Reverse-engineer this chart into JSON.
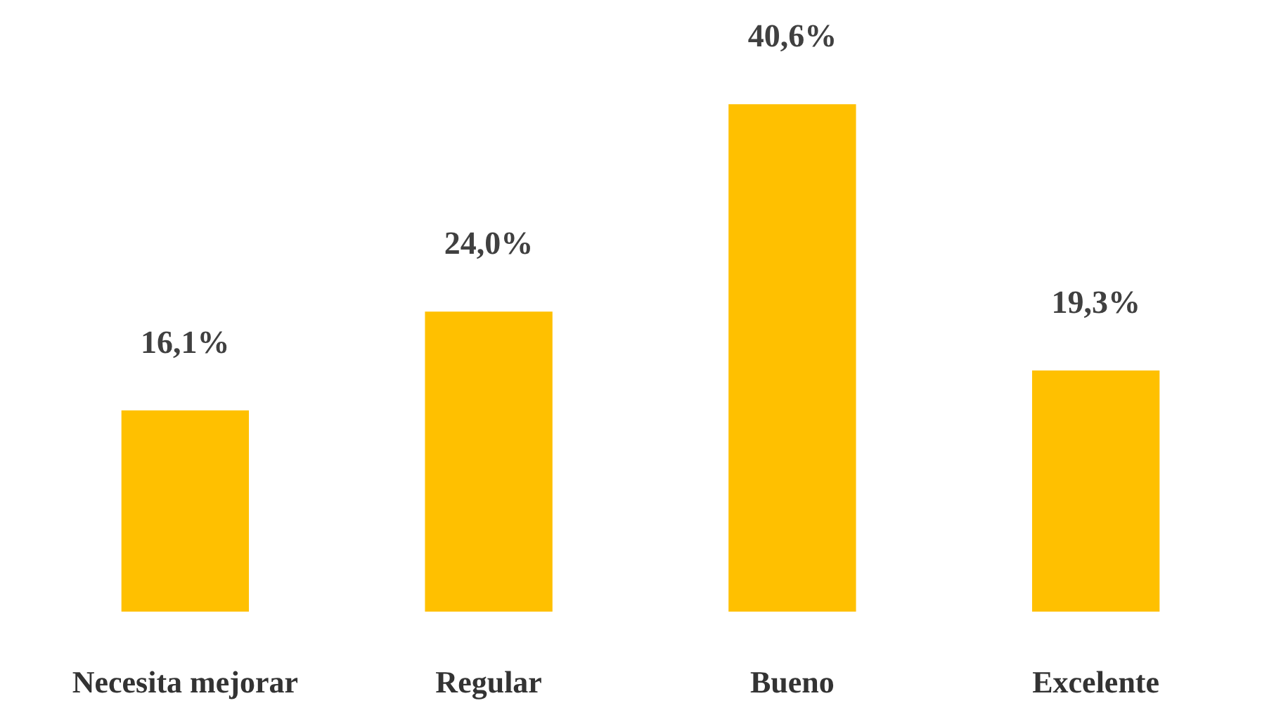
{
  "chart_data": {
    "type": "bar",
    "categories": [
      "Necesita mejorar",
      "Regular",
      "Bueno",
      "Excelente"
    ],
    "values": [
      16.1,
      24.0,
      40.6,
      19.3
    ],
    "value_labels": [
      "16,1%",
      "24,0%",
      "40,6%",
      "19,3%"
    ],
    "color": "#ffc000",
    "grid": false
  }
}
